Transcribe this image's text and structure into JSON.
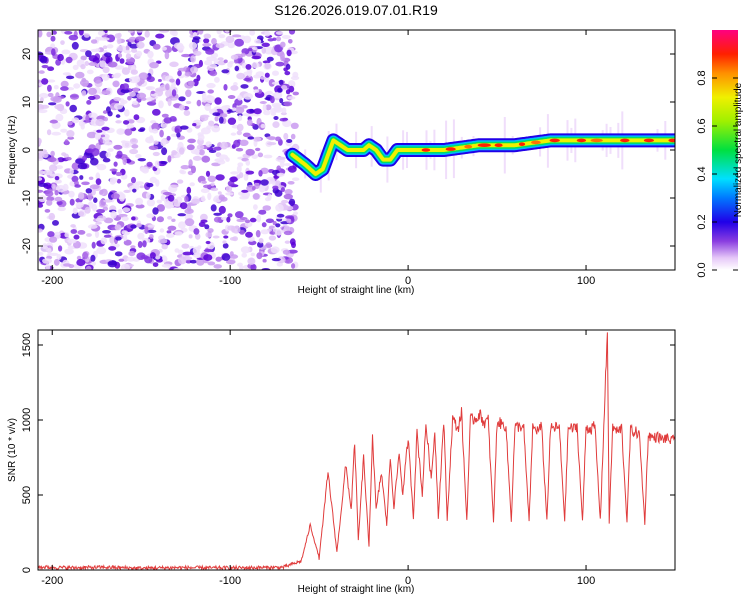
{
  "chart_data": [
    {
      "type": "heatmap",
      "title": "S126.2026.019.07.01.R19",
      "xlabel": "Height of straight line (km)",
      "ylabel": "Frequency (Hz)",
      "xlim": [
        -208,
        150
      ],
      "ylim": [
        -25,
        25
      ],
      "xticks": [
        -200,
        -100,
        0,
        100
      ],
      "yticks": [
        -20,
        -10,
        0,
        10,
        20
      ],
      "colorbar": {
        "label": "Normalized spectral amplitude",
        "range": [
          0,
          1
        ],
        "ticks": [
          0.0,
          0.2,
          0.4,
          0.6,
          0.8
        ]
      },
      "noise_region": {
        "x_from": -208,
        "x_to": -63
      },
      "signal_ridge": {
        "x": [
          -65,
          -58,
          -52,
          -48,
          -45,
          -42,
          -38,
          -34,
          -30,
          -25,
          -22,
          -18,
          -14,
          -10,
          -6,
          -2,
          2,
          10,
          20,
          40,
          60,
          80,
          100,
          120,
          150
        ],
        "frequency": [
          -1,
          -3,
          -5,
          -4,
          -1,
          2,
          1,
          0,
          0,
          0,
          1,
          0,
          -2,
          -2,
          0,
          0,
          0,
          0,
          0,
          1,
          1,
          2,
          2,
          2,
          2
        ]
      }
    },
    {
      "type": "line",
      "xlabel": "Height of straight line (km)",
      "ylabel": "SNR (10 * v/v)",
      "xlim": [
        -208,
        150
      ],
      "ylim": [
        0,
        1600
      ],
      "xticks": [
        -200,
        -100,
        0,
        100
      ],
      "yticks": [
        0,
        500,
        1000,
        1500
      ],
      "series": [
        {
          "name": "SNR",
          "color": "#e03c3c",
          "x": [
            -208,
            -190,
            -170,
            -150,
            -130,
            -110,
            -90,
            -70,
            -60,
            -55,
            -50,
            -45,
            -40,
            -35,
            -32,
            -30,
            -28,
            -25,
            -22,
            -20,
            -18,
            -15,
            -12,
            -10,
            -8,
            -5,
            -3,
            0,
            3,
            5,
            8,
            10,
            13,
            15,
            17,
            20,
            22,
            25,
            28,
            30,
            33,
            35,
            38,
            40,
            43,
            45,
            48,
            50,
            53,
            55,
            58,
            60,
            63,
            65,
            68,
            70,
            73,
            75,
            78,
            80,
            83,
            85,
            88,
            90,
            93,
            95,
            98,
            100,
            103,
            105,
            108,
            110,
            112,
            113,
            115,
            118,
            120,
            123,
            125,
            128,
            130,
            133,
            135,
            138,
            140,
            143,
            145,
            148,
            150
          ],
          "y": [
            20,
            15,
            18,
            12,
            16,
            14,
            15,
            18,
            60,
            300,
            80,
            650,
            120,
            700,
            400,
            850,
            200,
            750,
            150,
            900,
            400,
            650,
            300,
            750,
            420,
            780,
            500,
            880,
            350,
            920,
            500,
            980,
            600,
            930,
            350,
            1000,
            330,
            1010,
            940,
            1050,
            330,
            1000,
            1010,
            1040,
            980,
            1000,
            320,
            990,
            970,
            960,
            330,
            950,
            960,
            940,
            320,
            950,
            930,
            960,
            330,
            940,
            950,
            950,
            330,
            950,
            940,
            960,
            320,
            950,
            940,
            960,
            330,
            950,
            1600,
            320,
            950,
            920,
            950,
            320,
            930,
            920,
            900,
            310,
            900,
            880,
            890,
            870,
            880,
            860,
            870
          ]
        }
      ]
    }
  ]
}
